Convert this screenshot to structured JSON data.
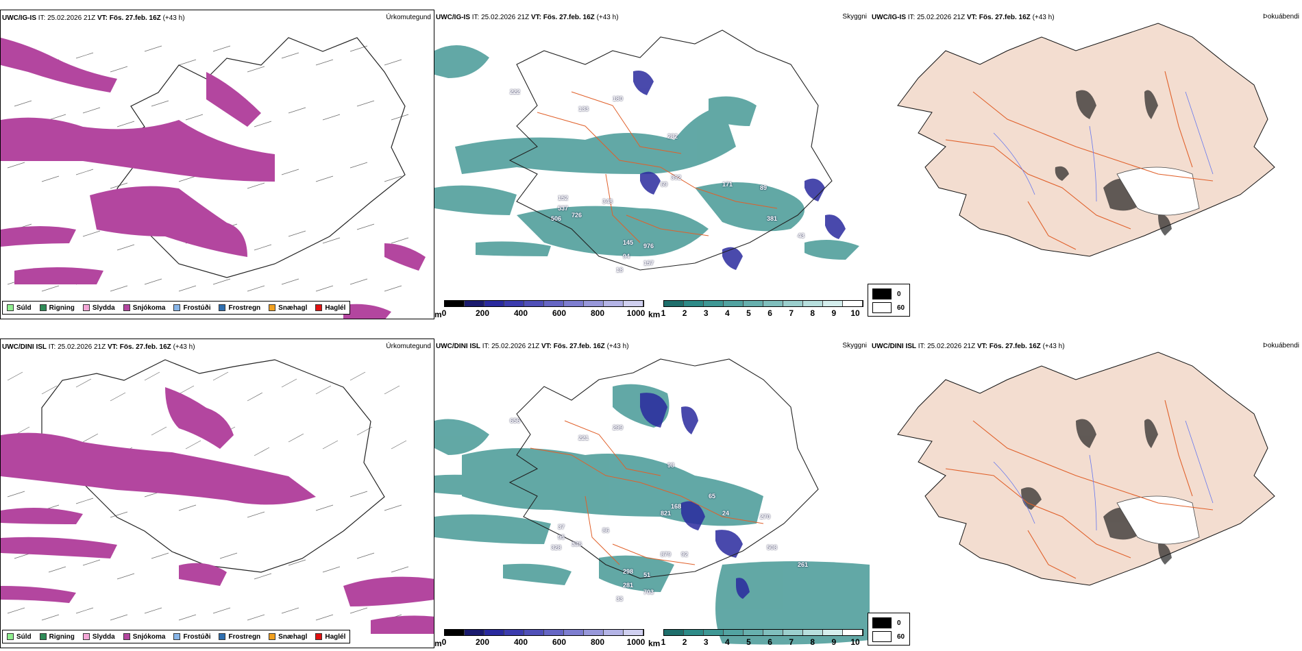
{
  "colors": {
    "precip": {
      "drizzle": "#90ee90",
      "rain": "#2e8b57",
      "sleet": "#f4a6d7",
      "snow": "#b3469f",
      "freezing_drizzle": "#87b5e8",
      "freezing_rain": "#2f6fb0",
      "snow_hail": "#f0a020",
      "hail": "#e01010"
    },
    "cloud_teal": "#2e8b88",
    "cloud_blue": "#2a2a9e",
    "land": "#f3ddd0",
    "road": "#e0602a",
    "river": "#6677ee"
  },
  "rows": [
    {
      "model_label": "UWC/IG-IS",
      "precip_panel": {
        "model": "UWC/IG-IS",
        "it": "IT: 25.02.2026 21Z",
        "vt_prefix": "VT:",
        "vt": "Fös. 27.feb. 16Z",
        "lead": "(+43 h)",
        "title": "Úrkomutegund"
      },
      "cloud_panel": {
        "model": "UWC/IG-IS",
        "it": "IT: 25.02.2026 21Z",
        "vt_prefix": "VT:",
        "vt": "Fös. 27.feb. 16Z",
        "lead": "(+43 h)",
        "title": "Skyggni",
        "labels": [
          "222",
          "180",
          "133",
          "282",
          "392",
          "69",
          "171",
          "89",
          "152",
          "537",
          "348",
          "506",
          "726",
          "381",
          "43",
          "145",
          "976",
          "94",
          "157",
          "18"
        ]
      },
      "fog_panel": {
        "model": "UWC/IG-IS",
        "it": "IT: 25.02.2026 21Z",
        "vt_prefix": "VT:",
        "vt": "Fös. 27.feb. 16Z",
        "lead": "(+43 h)",
        "title": "Þokuábendi"
      }
    },
    {
      "model_label": "UWC/DINI ISL",
      "precip_panel": {
        "model": "UWC/DINI ISL",
        "it": "IT: 25.02.2026 21Z",
        "vt_prefix": "VT:",
        "vt": "Fös. 27.feb. 16Z",
        "lead": "(+43 h)",
        "title": "Úrkomutegund"
      },
      "cloud_panel": {
        "model": "UWC/DINI ISL",
        "it": "IT: 25.02.2026 21Z",
        "vt_prefix": "VT:",
        "vt": "Fös. 27.feb. 16Z",
        "lead": "(+43 h)",
        "title": "Skyggni",
        "labels": [
          "656",
          "299",
          "221",
          "98",
          "168",
          "821",
          "24",
          "270",
          "37",
          "95",
          "86",
          "328",
          "336",
          "508",
          "261",
          "298",
          "51",
          "281",
          "703",
          "33",
          "65",
          "92",
          "879"
        ]
      },
      "fog_panel": {
        "model": "UWC/DINI ISL",
        "it": "IT: 25.02.2026 21Z",
        "vt_prefix": "VT:",
        "vt": "Fös. 27.feb. 16Z",
        "lead": "(+43 h)",
        "title": "Þokuábendi"
      }
    }
  ],
  "precip_legend": [
    "Súld",
    "Rigning",
    "Slydda",
    "Snjókoma",
    "Frostúði",
    "Frostregn",
    "Snæhagl",
    "Haglél"
  ],
  "cloud_base_bar": {
    "unit": "m",
    "ticks": [
      "0",
      "200",
      "400",
      "600",
      "800",
      "1000"
    ]
  },
  "visibility_bar": {
    "unit": "km",
    "ticks": [
      "1",
      "2",
      "3",
      "4",
      "5",
      "6",
      "7",
      "8",
      "9",
      "10"
    ]
  },
  "fog_legend": {
    "low": "0",
    "high": "60"
  }
}
